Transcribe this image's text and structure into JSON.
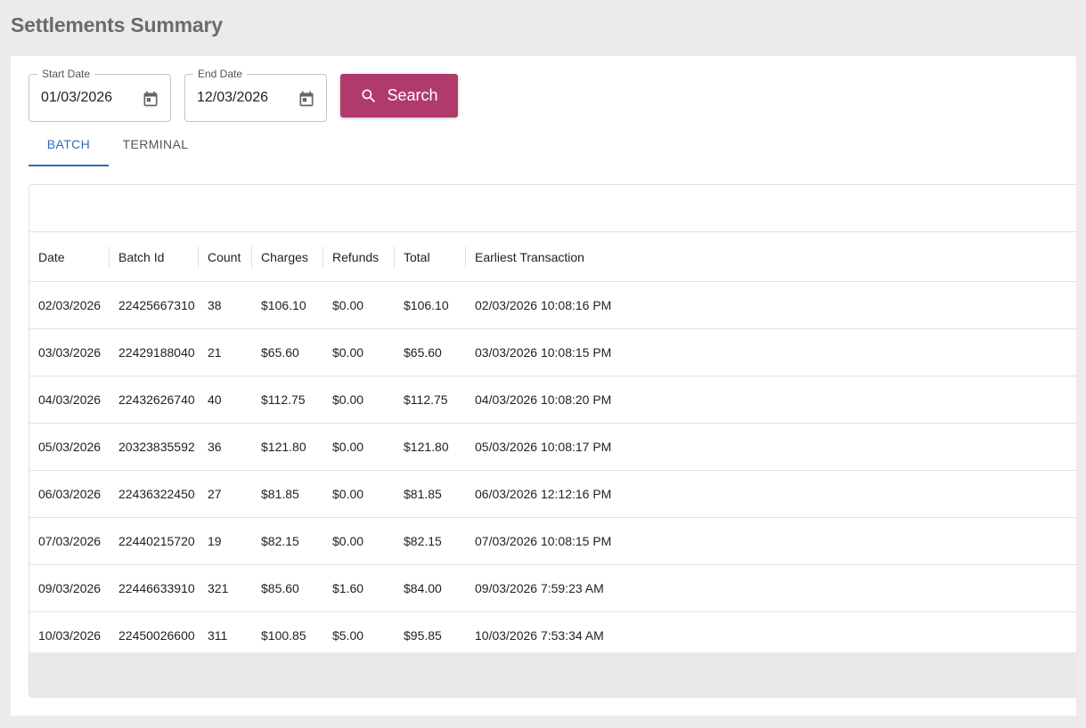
{
  "page": {
    "title": "Settlements Summary"
  },
  "filters": {
    "start_date": {
      "label": "Start Date",
      "value": "01/03/2026"
    },
    "end_date": {
      "label": "End Date",
      "value": "12/03/2026"
    },
    "search_label": "Search"
  },
  "tabs": [
    {
      "label": "BATCH",
      "active": true
    },
    {
      "label": "TERMINAL",
      "active": false
    }
  ],
  "table": {
    "columns": [
      "Date",
      "Batch Id",
      "Count",
      "Charges",
      "Refunds",
      "Total",
      "Earliest Transaction"
    ],
    "rows": [
      [
        "02/03/2026",
        "22425667310",
        "38",
        "$106.10",
        "$0.00",
        "$106.10",
        "02/03/2026 10:08:16 PM"
      ],
      [
        "03/03/2026",
        "22429188040",
        "21",
        "$65.60",
        "$0.00",
        "$65.60",
        "03/03/2026 10:08:15 PM"
      ],
      [
        "04/03/2026",
        "22432626740",
        "40",
        "$112.75",
        "$0.00",
        "$112.75",
        "04/03/2026 10:08:20 PM"
      ],
      [
        "05/03/2026",
        "20323835592",
        "36",
        "$121.80",
        "$0.00",
        "$121.80",
        "05/03/2026 10:08:17 PM"
      ],
      [
        "06/03/2026",
        "22436322450",
        "27",
        "$81.85",
        "$0.00",
        "$81.85",
        "06/03/2026 12:12:16 PM"
      ],
      [
        "07/03/2026",
        "22440215720",
        "19",
        "$82.15",
        "$0.00",
        "$82.15",
        "07/03/2026 10:08:15 PM"
      ],
      [
        "09/03/2026",
        "22446633910",
        "321",
        "$85.60",
        "$1.60",
        "$84.00",
        "09/03/2026 7:59:23 AM"
      ],
      [
        "10/03/2026",
        "22450026600",
        "311",
        "$100.85",
        "$5.00",
        "$95.85",
        "10/03/2026 7:53:34 AM"
      ]
    ]
  },
  "colors": {
    "accent": "#b03a6c",
    "tab_active": "#2f6db5",
    "title": "#6b6b6b"
  },
  "icons": {
    "date_picker": "calendar-icon",
    "search": "search-icon"
  }
}
